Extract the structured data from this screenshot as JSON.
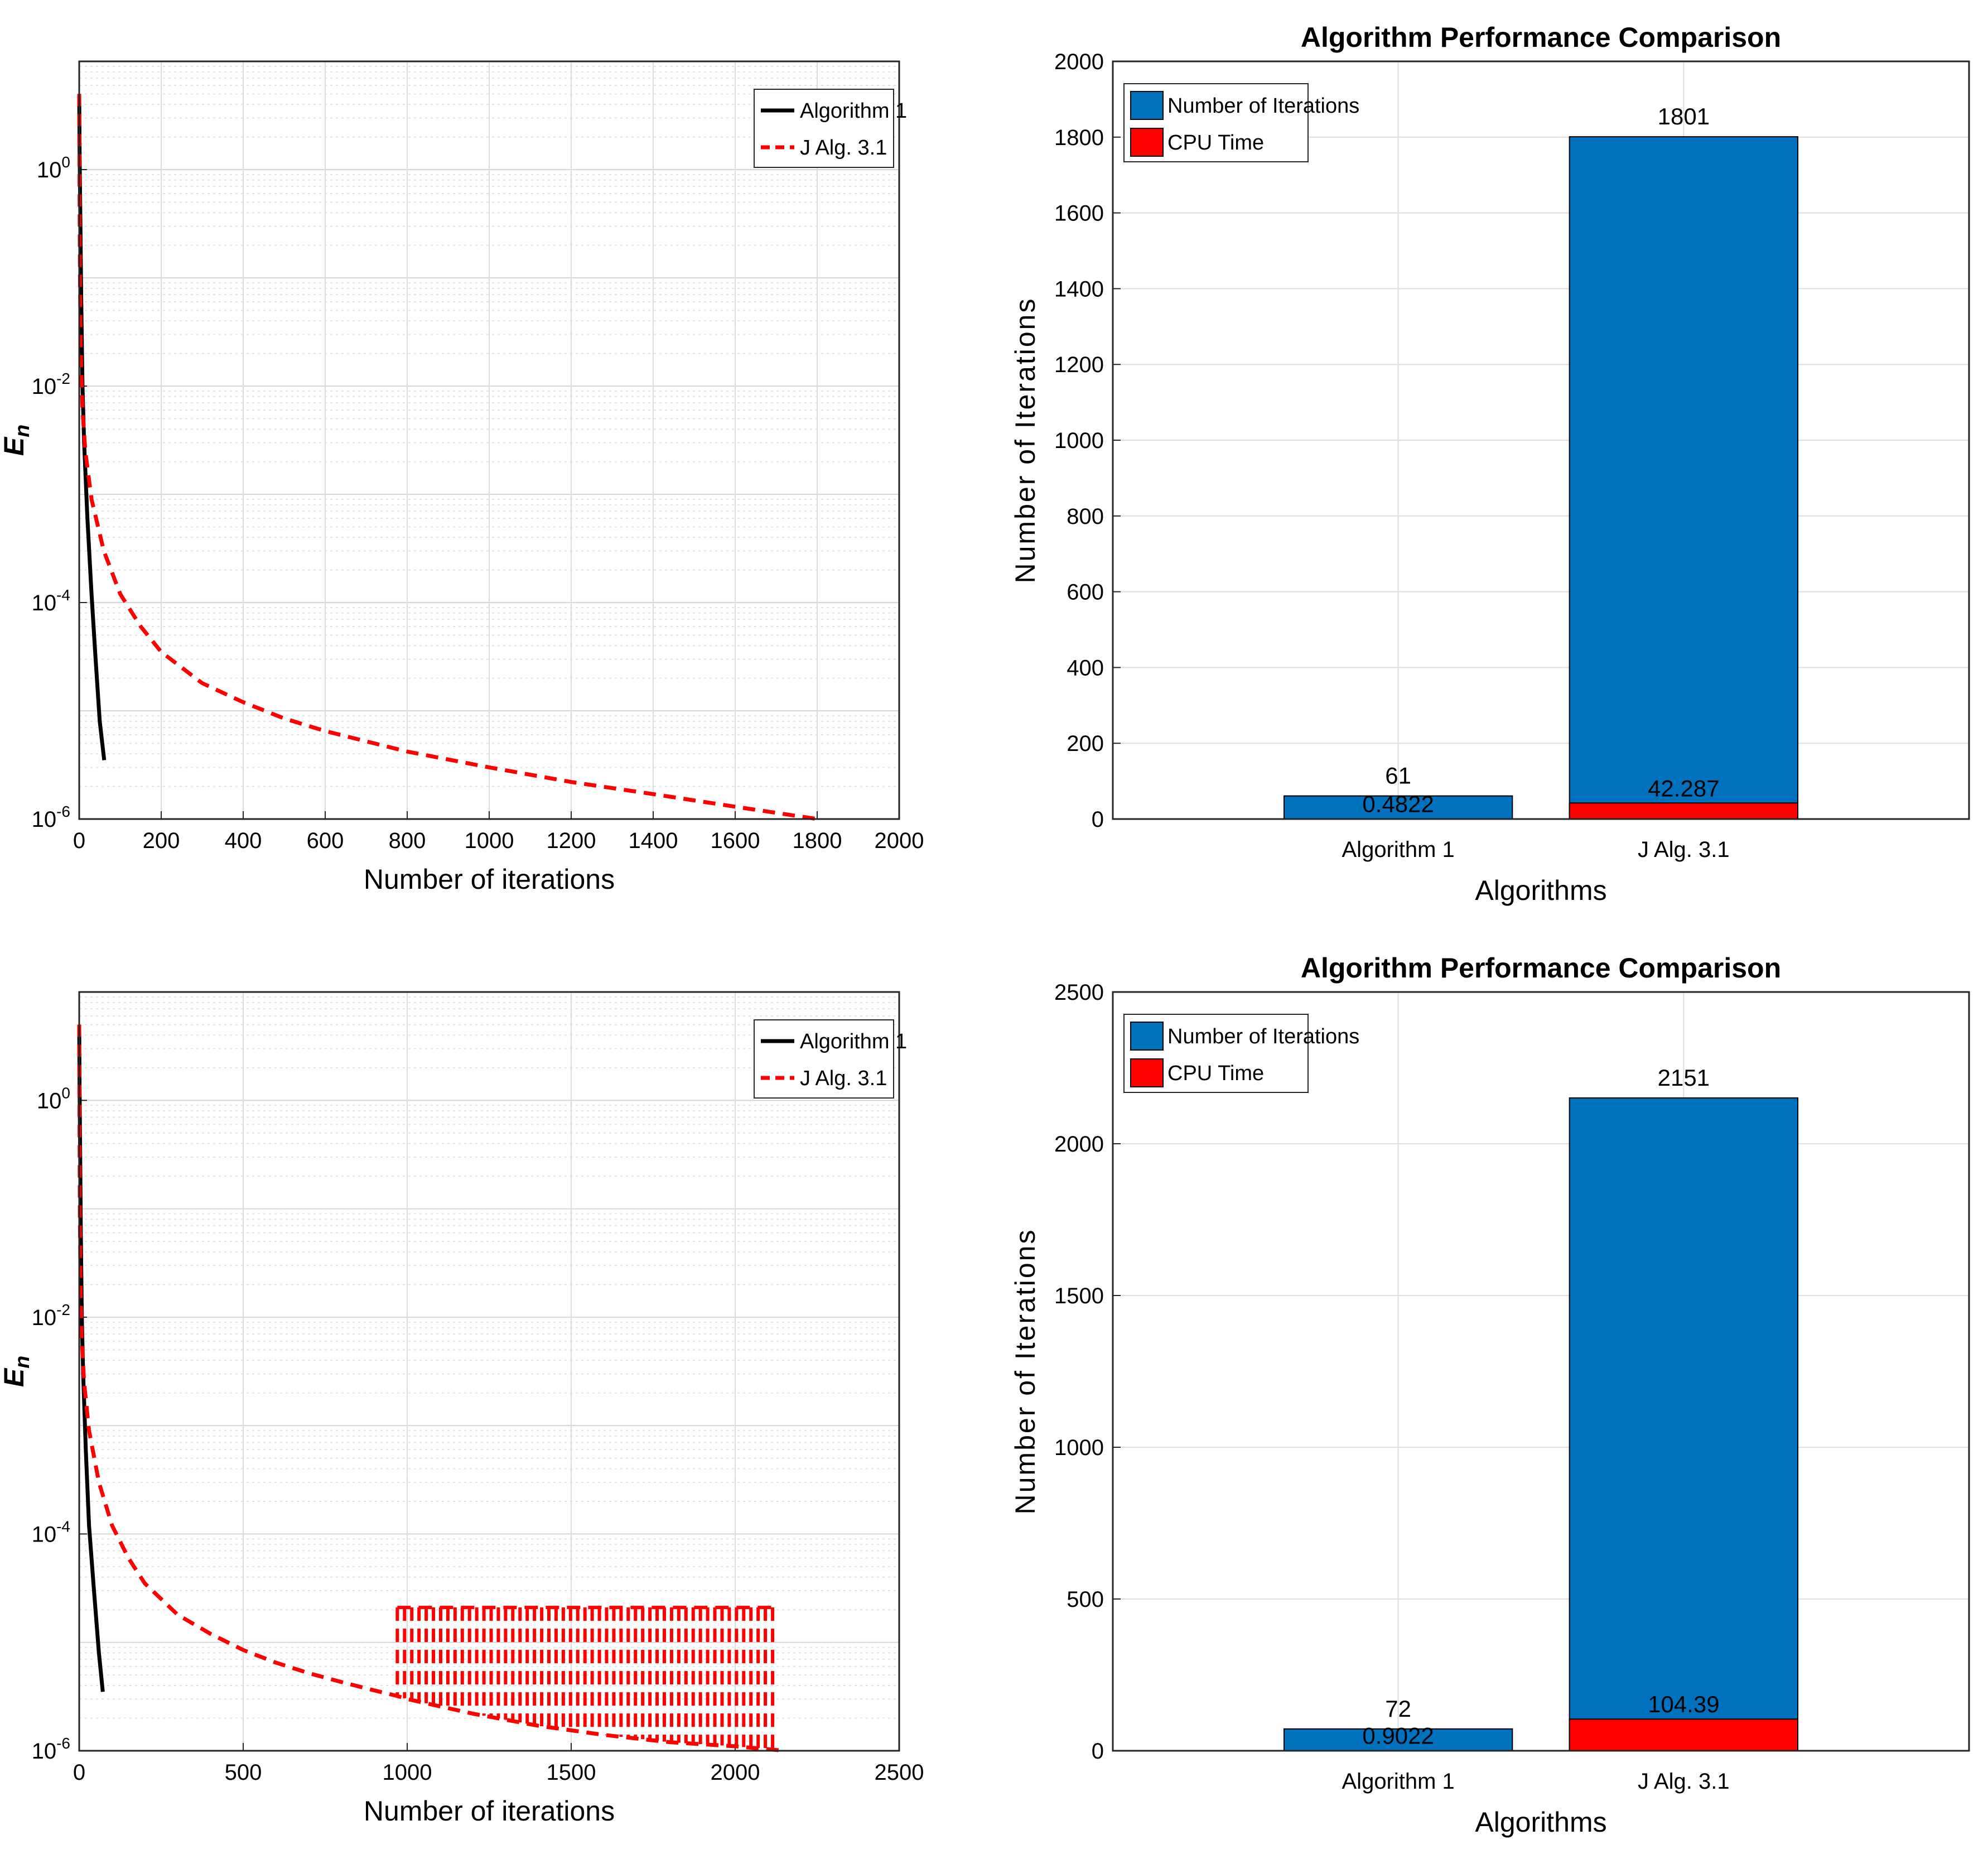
{
  "chart_data": [
    {
      "type": "line",
      "xlabel": "Number of iterations",
      "ylabel": "E_n",
      "yscale": "log",
      "xlim": [
        0,
        2000
      ],
      "ylim": [
        1e-06,
        10
      ],
      "xticks": [
        0,
        200,
        400,
        600,
        800,
        1000,
        1200,
        1400,
        1600,
        1800,
        2000
      ],
      "yticks": [
        {
          "value": 1,
          "base": "10",
          "exp": "0"
        },
        {
          "value": 0.01,
          "base": "10",
          "exp": "-2"
        },
        {
          "value": 0.0001,
          "base": "10",
          "exp": "-4"
        },
        {
          "value": 1e-06,
          "base": "10",
          "exp": "-6"
        }
      ],
      "grid": true,
      "legend_position": "top-right",
      "series": [
        {
          "name": "Algorithm 1",
          "color": "#000000",
          "style": "solid",
          "x": [
            0,
            1,
            3,
            5,
            8,
            12,
            20,
            30,
            40,
            50,
            61
          ],
          "y": [
            5.0,
            1.5,
            0.3,
            0.06,
            0.01,
            0.003,
            0.0006,
            0.00012,
            3e-05,
            8e-06,
            3.5e-06
          ]
        },
        {
          "name": "J Alg. 3.1",
          "color": "#ff0000",
          "style": "dashed",
          "x": [
            0,
            1,
            2,
            4,
            8,
            15,
            30,
            60,
            100,
            150,
            200,
            300,
            400,
            500,
            600,
            800,
            1000,
            1200,
            1400,
            1600,
            1801
          ],
          "y": [
            5.0,
            0.5,
            0.08,
            0.02,
            0.006,
            0.0025,
            0.0009,
            0.0003,
            0.00012,
            6e-05,
            3.5e-05,
            1.8e-05,
            1.2e-05,
            8.5e-06,
            6.5e-06,
            4.2e-06,
            3e-06,
            2.2e-06,
            1.7e-06,
            1.3e-06,
            1e-06
          ]
        }
      ]
    },
    {
      "type": "bar",
      "title": "Algorithm Performance Comparison",
      "xlabel": "Algorithms",
      "ylabel": "Number of Iterations",
      "ylim": [
        0,
        2000
      ],
      "yticks": [
        0,
        200,
        400,
        600,
        800,
        1000,
        1200,
        1400,
        1600,
        1800,
        2000
      ],
      "categories": [
        "Algorithm 1",
        "J Alg. 3.1"
      ],
      "grid": true,
      "legend_position": "top-left",
      "series": [
        {
          "name": "Number of Iterations",
          "color": "#0072bd",
          "values": [
            61,
            1801
          ],
          "labels": [
            "61",
            "1801"
          ]
        },
        {
          "name": "CPU Time",
          "color": "#ff0000",
          "values": [
            0.4822,
            42.287
          ],
          "labels": [
            "0.4822",
            "42.287"
          ]
        }
      ]
    },
    {
      "type": "line",
      "xlabel": "Number of iterations",
      "ylabel": "E_n",
      "yscale": "log",
      "xlim": [
        0,
        2500
      ],
      "ylim": [
        1e-06,
        10
      ],
      "xticks": [
        0,
        500,
        1000,
        1500,
        2000,
        2500
      ],
      "yticks": [
        {
          "value": 1,
          "base": "10",
          "exp": "0"
        },
        {
          "value": 0.01,
          "base": "10",
          "exp": "-2"
        },
        {
          "value": 0.0001,
          "base": "10",
          "exp": "-4"
        },
        {
          "value": 1e-06,
          "base": "10",
          "exp": "-6"
        }
      ],
      "grid": true,
      "legend_position": "top-right",
      "series": [
        {
          "name": "Algorithm 1",
          "color": "#000000",
          "style": "solid",
          "x": [
            0,
            1,
            3,
            5,
            8,
            12,
            20,
            30,
            45,
            60,
            72
          ],
          "y": [
            5.0,
            1.5,
            0.3,
            0.06,
            0.01,
            0.003,
            0.0006,
            0.00012,
            3e-05,
            8e-06,
            3.5e-06
          ]
        },
        {
          "name": "J Alg. 3.1",
          "color": "#ff0000",
          "style": "dashed",
          "x": [
            0,
            1,
            2,
            4,
            8,
            15,
            30,
            60,
            100,
            150,
            200,
            300,
            400,
            500,
            600,
            700,
            800,
            900,
            970,
            1000,
            1200,
            1400,
            1600,
            1800,
            2000,
            2151
          ],
          "y": [
            5.0,
            0.5,
            0.08,
            0.02,
            0.006,
            0.0025,
            0.0009,
            0.0003,
            0.00012,
            6e-05,
            3.5e-05,
            1.8e-05,
            1.2e-05,
            8.5e-06,
            6.5e-06,
            5.2e-06,
            4.3e-06,
            3.6e-06,
            3.2e-06,
            3e-06,
            2.2e-06,
            1.7e-06,
            1.4e-06,
            1.2e-06,
            1.1e-06,
            1e-06
          ],
          "oscillation": {
            "start": 970,
            "end": 2130,
            "peak": 2.1e-05
          }
        }
      ]
    },
    {
      "type": "bar",
      "title": "Algorithm Performance Comparison",
      "xlabel": "Algorithms",
      "ylabel": "Number of Iterations",
      "ylim": [
        0,
        2500
      ],
      "yticks": [
        0,
        500,
        1000,
        1500,
        2000,
        2500
      ],
      "categories": [
        "Algorithm 1",
        "J Alg. 3.1"
      ],
      "grid": true,
      "legend_position": "top-left",
      "series": [
        {
          "name": "Number of Iterations",
          "color": "#0072bd",
          "values": [
            72,
            2151
          ],
          "labels": [
            "72",
            "2151"
          ]
        },
        {
          "name": "CPU Time",
          "color": "#ff0000",
          "values": [
            0.9022,
            104.39
          ],
          "labels": [
            "0.9022",
            "104.39"
          ]
        }
      ]
    }
  ]
}
